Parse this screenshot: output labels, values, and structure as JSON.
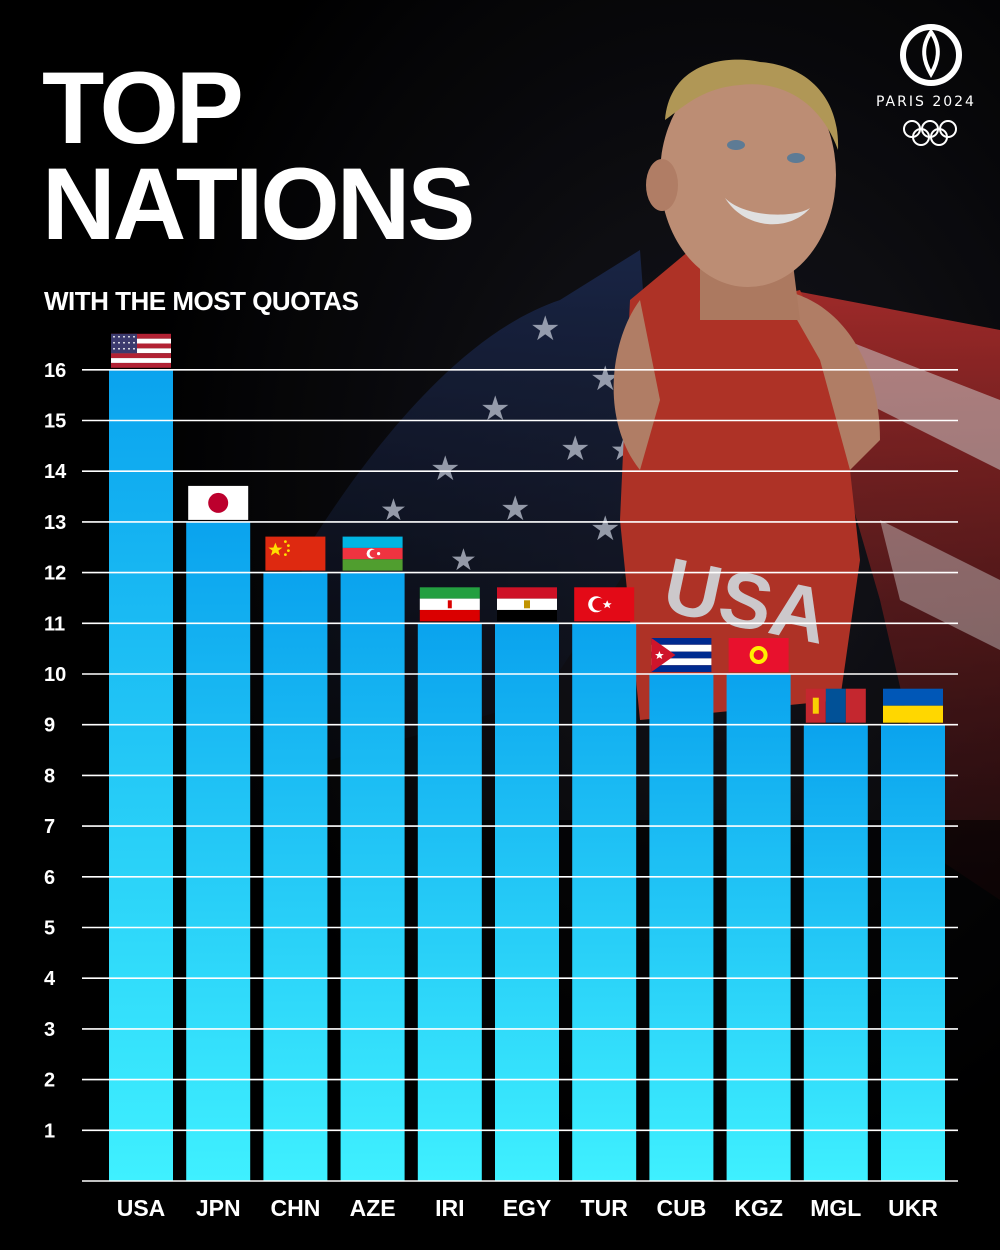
{
  "header": {
    "title_line1": "TOP",
    "title_line2": "NATIONS",
    "subtitle": "WITH THE MOST QUOTAS"
  },
  "logo": {
    "text": "PARIS 2024",
    "icon": "olympic-rings-icon"
  },
  "colors": {
    "bar_top": "#0aa3ee",
    "bar_bottom": "#3ff0ff",
    "gridline": "#ffffff",
    "background": "#000000"
  },
  "chart_data": {
    "type": "bar",
    "title": "TOP NATIONS",
    "subtitle": "WITH THE MOST QUOTAS",
    "xlabel": "",
    "ylabel": "",
    "categories": [
      "USA",
      "JPN",
      "CHN",
      "AZE",
      "IRI",
      "EGY",
      "TUR",
      "CUB",
      "KGZ",
      "MGL",
      "UKR"
    ],
    "values": [
      16,
      13,
      12,
      12,
      11,
      11,
      11,
      10,
      10,
      9,
      9
    ],
    "flags": [
      "flag-usa-icon",
      "flag-japan-icon",
      "flag-china-icon",
      "flag-azerbaijan-icon",
      "flag-iran-icon",
      "flag-egypt-icon",
      "flag-turkey-icon",
      "flag-cuba-icon",
      "flag-kyrgyzstan-icon",
      "flag-mongolia-icon",
      "flag-ukraine-icon"
    ],
    "yticks": [
      1,
      2,
      3,
      4,
      5,
      6,
      7,
      8,
      9,
      10,
      11,
      12,
      13,
      14,
      15,
      16
    ],
    "ylim": [
      0,
      16
    ],
    "grid": true,
    "legend": "none"
  }
}
